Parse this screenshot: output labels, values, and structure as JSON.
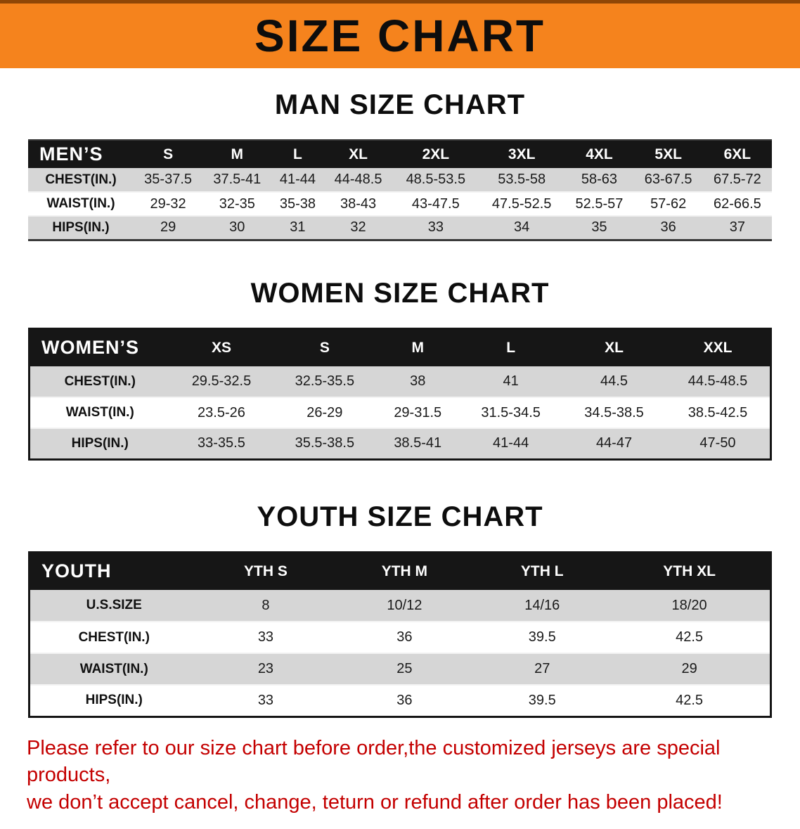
{
  "banner": {
    "title": "SIZE CHART"
  },
  "colors": {
    "banner_orange": "#F5831D",
    "table_header_black": "#161616",
    "row_shade_gray": "#D6D6D6",
    "disclaimer_red": "#C40000"
  },
  "sections": [
    {
      "heading": "MAN SIZE CHART",
      "table": {
        "header": [
          "MEN’S",
          "S",
          "M",
          "L",
          "XL",
          "2XL",
          "3XL",
          "4XL",
          "5XL",
          "6XL"
        ],
        "rows": [
          [
            "CHEST(IN.)",
            "35-37.5",
            "37.5-41",
            "41-44",
            "44-48.5",
            "48.5-53.5",
            "53.5-58",
            "58-63",
            "63-67.5",
            "67.5-72"
          ],
          [
            "WAIST(IN.)",
            "29-32",
            "32-35",
            "35-38",
            "38-43",
            "43-47.5",
            "47.5-52.5",
            "52.5-57",
            "57-62",
            "62-66.5"
          ],
          [
            "HIPS(IN.)",
            "29",
            "30",
            "31",
            "32",
            "33",
            "34",
            "35",
            "36",
            "37"
          ]
        ]
      }
    },
    {
      "heading": "WOMEN SIZE CHART",
      "table": {
        "header": [
          "WOMEN’S",
          "XS",
          "S",
          "M",
          "L",
          "XL",
          "XXL"
        ],
        "rows": [
          [
            "CHEST(IN.)",
            "29.5-32.5",
            "32.5-35.5",
            "38",
            "41",
            "44.5",
            "44.5-48.5"
          ],
          [
            "WAIST(IN.)",
            "23.5-26",
            "26-29",
            "29-31.5",
            "31.5-34.5",
            "34.5-38.5",
            "38.5-42.5"
          ],
          [
            "HIPS(IN.)",
            "33-35.5",
            "35.5-38.5",
            "38.5-41",
            "41-44",
            "44-47",
            "47-50"
          ]
        ]
      }
    },
    {
      "heading": "YOUTH SIZE CHART",
      "table": {
        "header": [
          "YOUTH",
          "YTH S",
          "YTH M",
          "YTH L",
          "YTH XL"
        ],
        "rows": [
          [
            "U.S.SIZE",
            "8",
            "10/12",
            "14/16",
            "18/20"
          ],
          [
            "CHEST(IN.)",
            "33",
            "36",
            "39.5",
            "42.5"
          ],
          [
            "WAIST(IN.)",
            "23",
            "25",
            "27",
            "29"
          ],
          [
            "HIPS(IN.)",
            "33",
            "36",
            "39.5",
            "42.5"
          ]
        ]
      }
    }
  ],
  "disclaimer": {
    "line1": "Please refer to our size chart before order,the customized jerseys are special products,",
    "line2": "we don’t accept cancel, change, teturn or refund after order has been placed!"
  }
}
